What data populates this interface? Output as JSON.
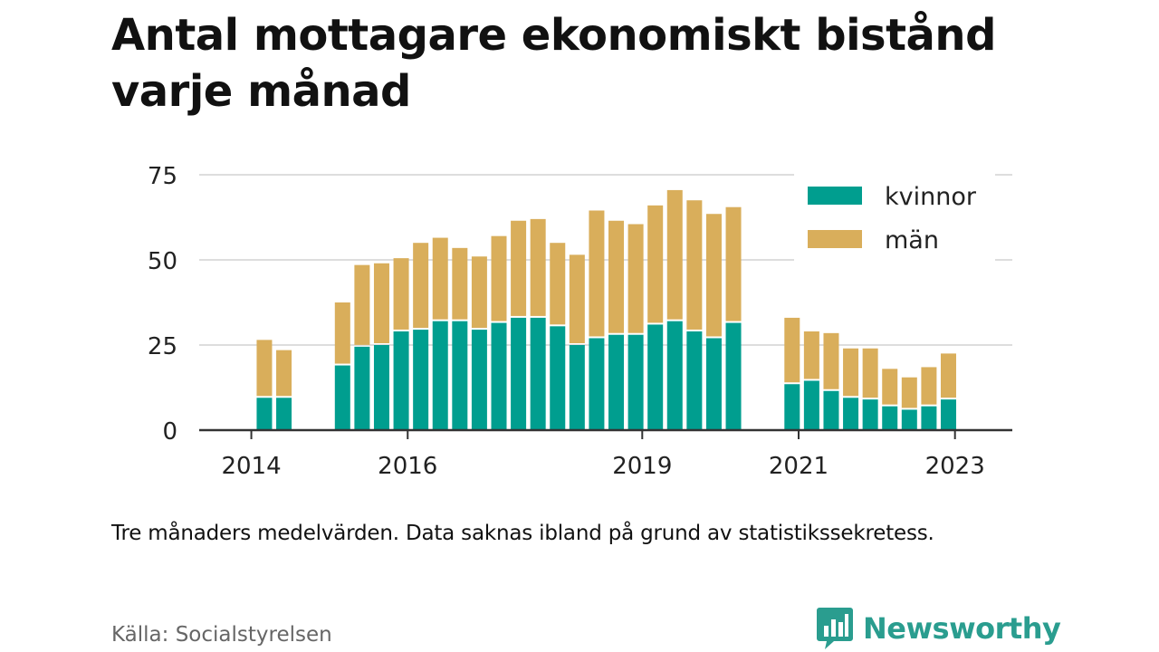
{
  "title": "Antal mottagare ekonomiskt bistånd varje månad",
  "note": "Tre månaders medelvärden. Data saknas ibland på grund av statistikssekretess.",
  "source": "Källa: Socialstyrelsen",
  "brand": {
    "name": "Newsworthy",
    "icon": "newsworthy-logo-icon"
  },
  "colors": {
    "kvinnor": "#009e8f",
    "man": "#d9ae5b",
    "grid": "#dddddd",
    "axis": "#333333",
    "brand": "#2a9d8f"
  },
  "chart_data": {
    "type": "bar",
    "stacked": true,
    "xlabel": "",
    "ylabel": "",
    "ylim": [
      0,
      75
    ],
    "yticks": [
      0,
      25,
      50,
      75
    ],
    "grid": true,
    "legend_position": "top-right",
    "xtick_labels": [
      {
        "label": "2014",
        "at": "2014-03"
      },
      {
        "label": "2016",
        "at": "2016-03"
      },
      {
        "label": "2019",
        "at": "2019-03"
      },
      {
        "label": "2021",
        "at": "2021-03"
      },
      {
        "label": "2023",
        "at": "2023-03"
      }
    ],
    "categories": [
      "2014-05",
      "2014-08",
      "2015-05",
      "2015-08",
      "2015-11",
      "2016-02",
      "2016-05",
      "2016-08",
      "2016-11",
      "2017-02",
      "2017-05",
      "2017-08",
      "2017-11",
      "2018-02",
      "2018-05",
      "2018-08",
      "2018-11",
      "2019-02",
      "2019-05",
      "2019-08",
      "2019-11",
      "2020-02",
      "2020-05",
      "2021-02",
      "2021-05",
      "2021-08",
      "2021-11",
      "2022-02",
      "2022-05",
      "2022-08",
      "2022-11",
      "2023-02"
    ],
    "series": [
      {
        "name": "kvinnor",
        "values": [
          9.5,
          9.5,
          19,
          24.5,
          25,
          29,
          29.5,
          32,
          32,
          29.5,
          31.5,
          33,
          33,
          30.5,
          25,
          27,
          28,
          28,
          31,
          32,
          29,
          27,
          31.5,
          13.5,
          14.5,
          11.5,
          9.5,
          9,
          7,
          6,
          7,
          9
        ]
      },
      {
        "name": "män",
        "values": [
          17,
          14,
          18.5,
          24,
          24,
          21.5,
          25.5,
          24.5,
          21.5,
          21.5,
          25.5,
          28.5,
          29,
          24.5,
          26.5,
          37.5,
          33.5,
          32.5,
          35,
          38.5,
          38.5,
          36.5,
          34,
          19.5,
          14.5,
          17,
          14.5,
          15,
          11,
          9.5,
          11.5,
          13.5
        ]
      }
    ]
  }
}
